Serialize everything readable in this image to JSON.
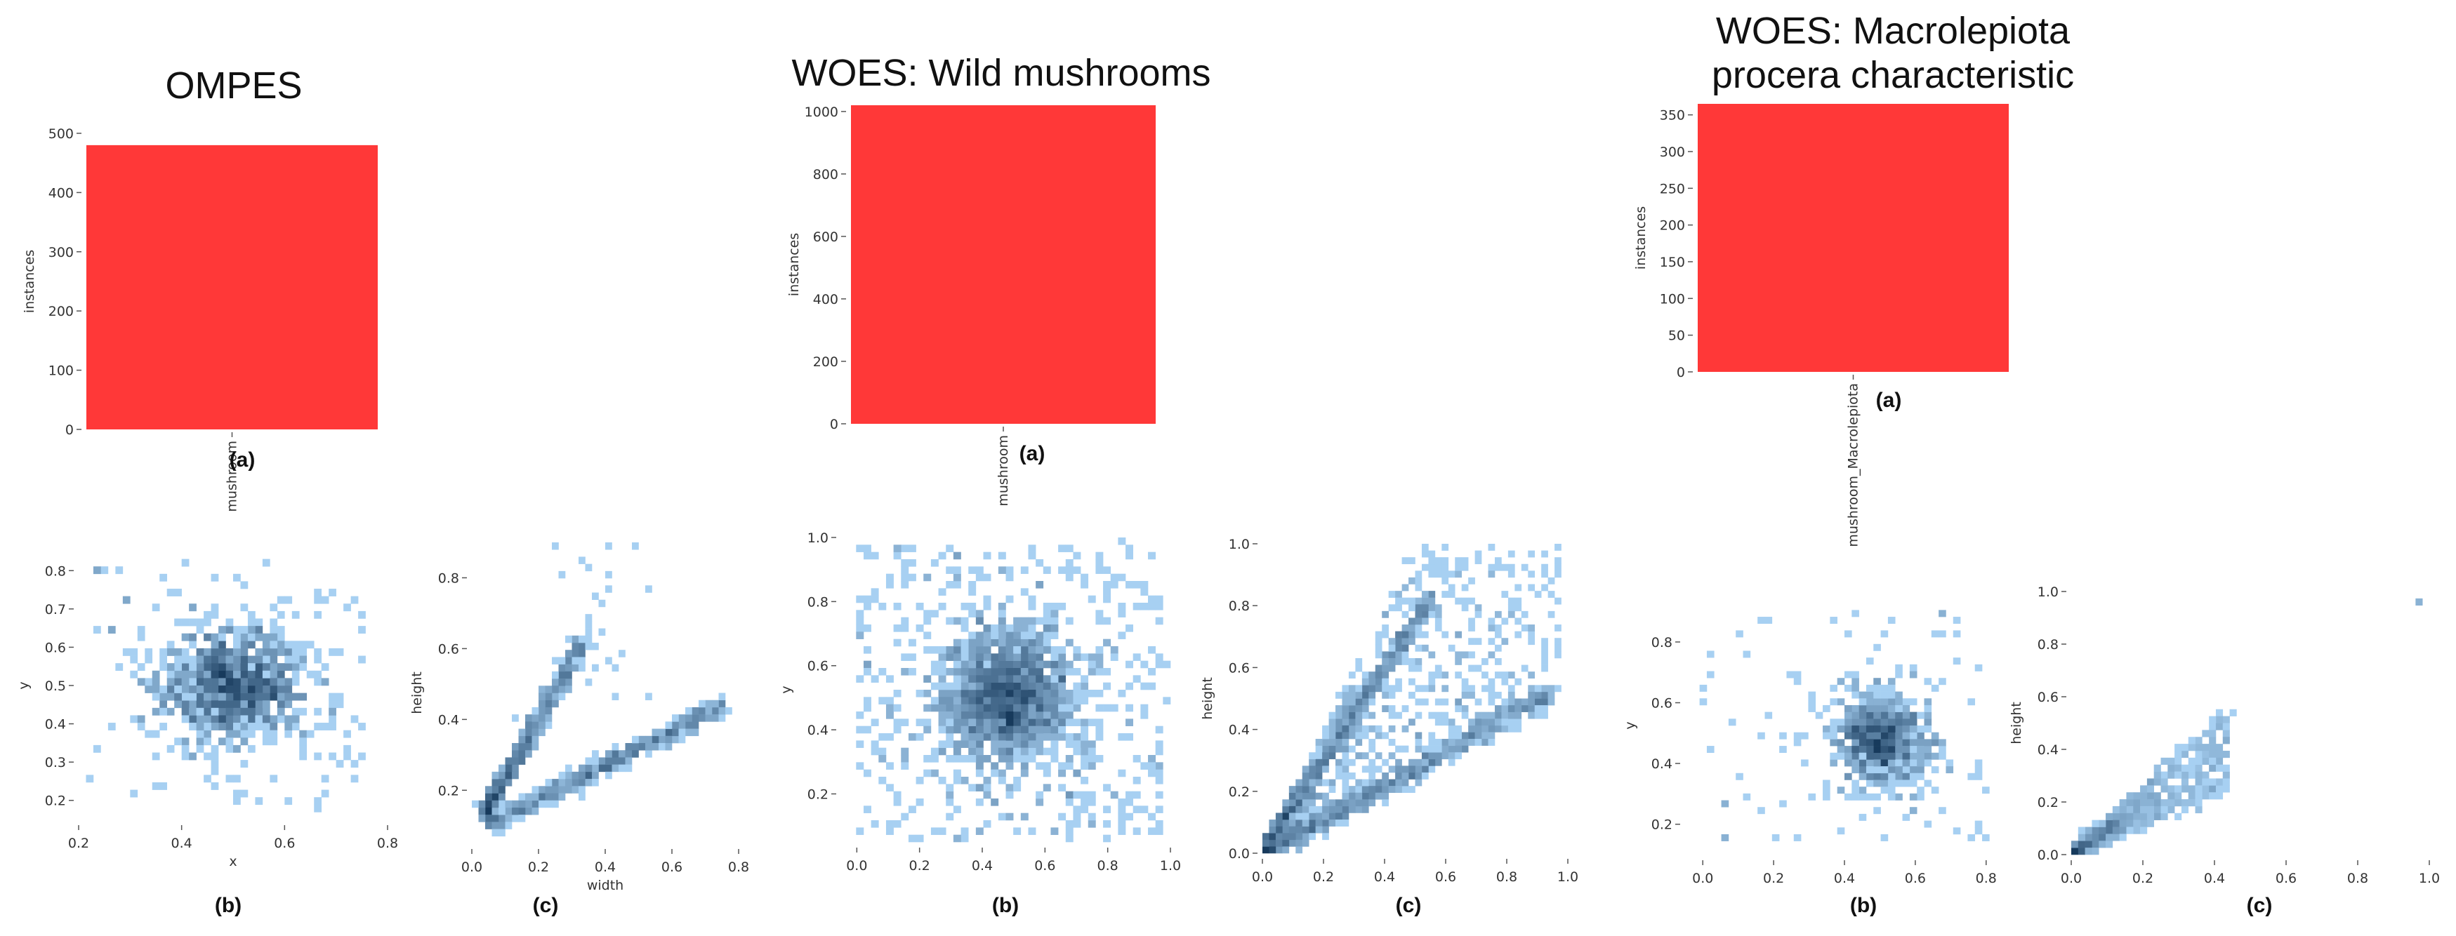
{
  "colors": {
    "bar": "#ff3838",
    "heat_dark": "#173a5c",
    "heat_light": "#a7d0f2"
  },
  "chart_data": [
    {
      "panel": "OMPES (a)",
      "type": "bar",
      "title": "OMPES",
      "caption": "(a)",
      "categories": [
        "mushroom"
      ],
      "values": [
        480
      ],
      "xlabel": "",
      "ylabel": "instances",
      "ylim": [
        0,
        500
      ],
      "yticks": [
        "0",
        "100",
        "200",
        "300",
        "400",
        "500"
      ]
    },
    {
      "panel": "OMPES (b)",
      "type": "heatmap",
      "caption": "(b)",
      "xlabel": "x",
      "ylabel": "y",
      "xlim": [
        0.2,
        0.8
      ],
      "ylim": [
        0.15,
        0.85
      ],
      "xticks": [
        "0.2",
        "0.4",
        "0.6",
        "0.8"
      ],
      "yticks": [
        "0.2",
        "0.3",
        "0.4",
        "0.5",
        "0.6",
        "0.7",
        "0.8"
      ],
      "distribution": "dense cluster centered near (0.5, 0.5)"
    },
    {
      "panel": "OMPES (c)",
      "type": "heatmap",
      "caption": "(c)",
      "xlabel": "width",
      "ylabel": "height",
      "xlim": [
        0.0,
        0.8
      ],
      "ylim": [
        0.05,
        0.9
      ],
      "xticks": [
        "0.0",
        "0.2",
        "0.4",
        "0.6",
        "0.8"
      ],
      "yticks": [
        "0.2",
        "0.4",
        "0.6",
        "0.8"
      ],
      "distribution": "two linear bands: height ~ 1.7·width and height ~ 0.55·width"
    },
    {
      "panel": "WOES: Wild mushrooms (a)",
      "type": "bar",
      "title": "WOES: Wild mushrooms",
      "caption": "(a)",
      "categories": [
        "mushroom"
      ],
      "values": [
        1020
      ],
      "xlabel": "",
      "ylabel": "instances",
      "ylim": [
        0,
        1020
      ],
      "yticks": [
        "0",
        "200",
        "400",
        "600",
        "800",
        "1000"
      ]
    },
    {
      "panel": "WOES: Wild mushrooms (b)",
      "type": "heatmap",
      "caption": "(b)",
      "xlabel": "",
      "ylabel": "y",
      "xlim": [
        -0.05,
        1.0
      ],
      "ylim": [
        0.05,
        1.0
      ],
      "xticks": [
        "0.0",
        "0.2",
        "0.4",
        "0.6",
        "0.8",
        "1.0"
      ],
      "yticks": [
        "0.2",
        "0.4",
        "0.6",
        "0.8",
        "1.0"
      ],
      "distribution": "broad spread with dense center near (0.5, 0.5)"
    },
    {
      "panel": "WOES: Wild mushrooms (c)",
      "type": "heatmap",
      "caption": "(c)",
      "xlabel": "",
      "ylabel": "height",
      "xlim": [
        0.0,
        1.0
      ],
      "ylim": [
        0.0,
        1.0
      ],
      "xticks": [
        "0.0",
        "0.2",
        "0.4",
        "0.6",
        "0.8",
        "1.0"
      ],
      "yticks": [
        "0.0",
        "0.2",
        "0.4",
        "0.6",
        "0.8",
        "1.0"
      ],
      "distribution": "wedge from origin: bands height ~ 1.5·width and height ~ 0.55·width plus scatter"
    },
    {
      "panel": "WOES: Macrolepiota procera characteristic (a)",
      "type": "bar",
      "title": [
        "WOES: Macrolepiota",
        "procera characteristic"
      ],
      "caption": "(a)",
      "categories": [
        "mushroom_Macrolepiota"
      ],
      "values": [
        365
      ],
      "xlabel": "",
      "ylabel": "instances",
      "ylim": [
        0,
        365
      ],
      "yticks": [
        "0",
        "50",
        "100",
        "150",
        "200",
        "250",
        "300",
        "350"
      ]
    },
    {
      "panel": "WOES: Macrolepiota procera characteristic (b)",
      "type": "heatmap",
      "caption": "(b)",
      "xlabel": "",
      "ylabel": "y",
      "xlim": [
        -0.05,
        0.85
      ],
      "ylim": [
        0.1,
        0.95
      ],
      "xticks": [
        "0.0",
        "0.2",
        "0.4",
        "0.6",
        "0.8"
      ],
      "yticks": [
        "0.2",
        "0.4",
        "0.6",
        "0.8"
      ],
      "distribution": "dense cluster centered near (0.5, 0.48)"
    },
    {
      "panel": "WOES: Macrolepiota procera characteristic (c)",
      "type": "heatmap",
      "caption": "(c)",
      "xlabel": "",
      "ylabel": "height",
      "xlim": [
        0.0,
        1.0
      ],
      "ylim": [
        0.0,
        1.0
      ],
      "xticks": [
        "0.0",
        "0.2",
        "0.4",
        "0.6",
        "0.8",
        "1.0"
      ],
      "yticks": [
        "0.0",
        "0.2",
        "0.4",
        "0.6",
        "0.8",
        "1.0"
      ],
      "distribution": "small wedge near origin, height ~ 0.9·width, width < 0.45; outliers near (0.98, 0.97)"
    }
  ]
}
